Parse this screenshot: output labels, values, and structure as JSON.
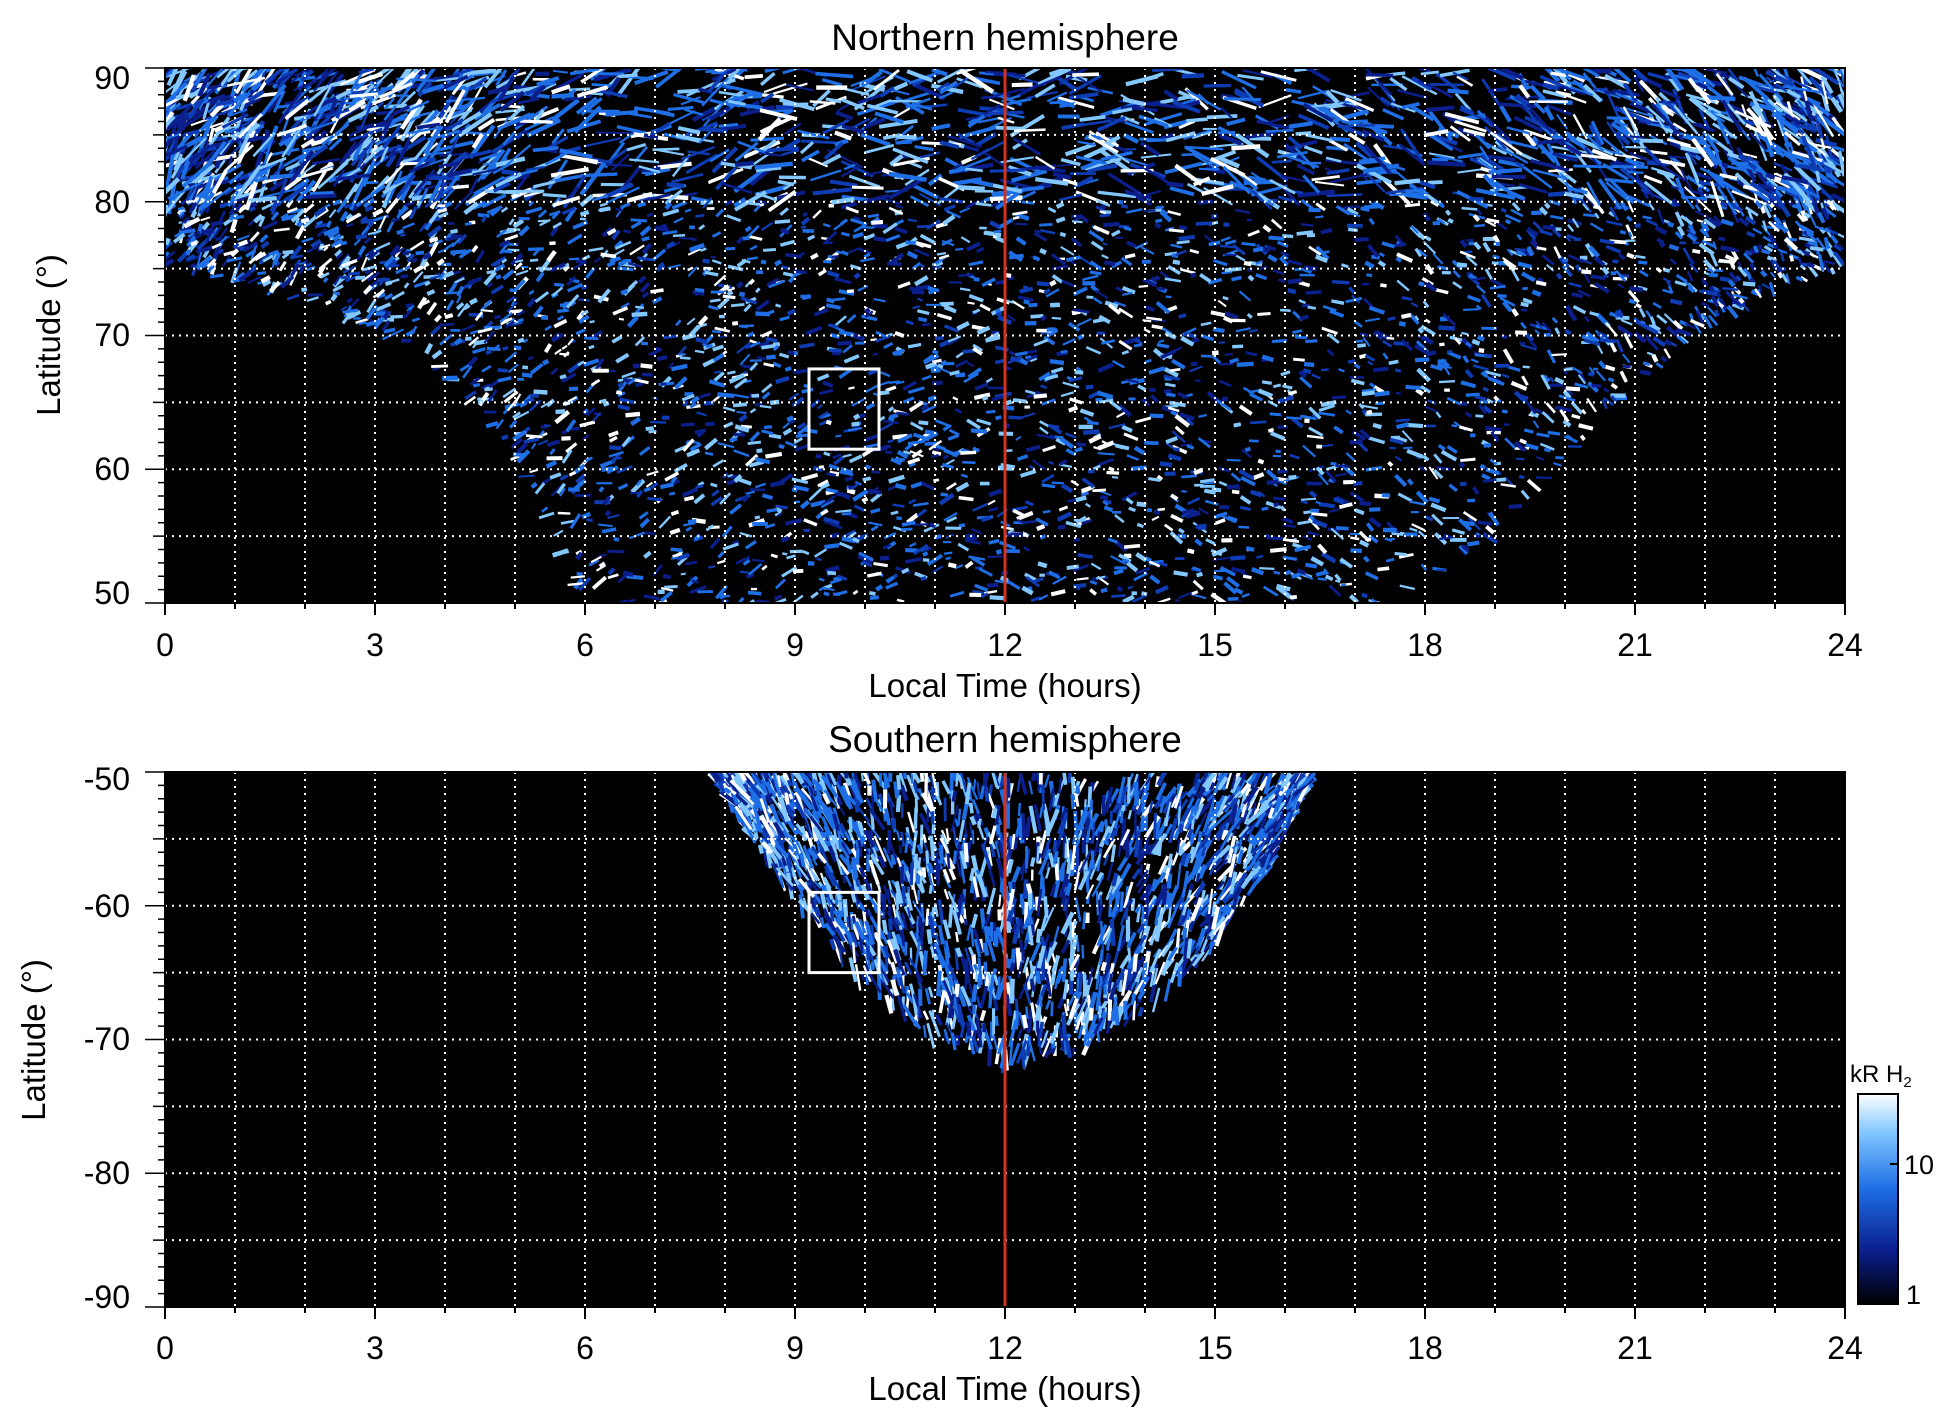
{
  "chart_data": [
    {
      "type": "heatmap",
      "title": "Northern hemisphere",
      "xlabel": "Local Time (hours)",
      "ylabel": "Latitude (°)",
      "xlim": [
        0,
        24
      ],
      "ylim": [
        50,
        90
      ],
      "x_ticks": [
        "0",
        "3",
        "6",
        "9",
        "12",
        "15",
        "18",
        "21",
        "24"
      ],
      "y_ticks": [
        "50",
        "60",
        "70",
        "80",
        "90"
      ],
      "grid": true,
      "noon_line_x": 12,
      "highlight_box": {
        "x": [
          9.2,
          10.2
        ],
        "y": [
          61.5,
          67.5
        ]
      },
      "coverage_floor": [
        [
          0,
          75
        ],
        [
          1,
          74
        ],
        [
          2,
          72.5
        ],
        [
          3,
          70.5
        ],
        [
          4,
          67
        ],
        [
          5,
          61
        ],
        [
          5.5,
          55
        ],
        [
          6,
          50
        ],
        [
          17.5,
          50
        ],
        [
          19,
          55
        ],
        [
          20,
          61
        ],
        [
          21,
          66
        ],
        [
          22,
          70.5
        ],
        [
          23,
          73.5
        ],
        [
          24,
          75
        ]
      ]
    },
    {
      "type": "heatmap",
      "title": "Southern hemisphere",
      "xlabel": "Local Time (hours)",
      "ylabel": "Latitude (°)",
      "xlim": [
        0,
        24
      ],
      "ylim": [
        -90,
        -50
      ],
      "x_ticks": [
        "0",
        "3",
        "6",
        "9",
        "12",
        "15",
        "18",
        "21",
        "24"
      ],
      "y_ticks": [
        "-50",
        "-60",
        "-70",
        "-80",
        "-90"
      ],
      "grid": true,
      "noon_line_x": 12,
      "highlight_box": {
        "x": [
          9.2,
          10.2
        ],
        "y": [
          -65,
          -59
        ]
      },
      "coverage_floor": [
        [
          7.8,
          -50
        ],
        [
          8.5,
          -56
        ],
        [
          9.2,
          -61
        ],
        [
          10,
          -66
        ],
        [
          11,
          -70
        ],
        [
          12,
          -72
        ],
        [
          13,
          -71
        ],
        [
          14,
          -68
        ],
        [
          15,
          -63
        ],
        [
          15.8,
          -57
        ],
        [
          16.4,
          -50
        ]
      ]
    }
  ],
  "colorbar": {
    "label": "kR H",
    "label_subscript": "2",
    "ticks": [
      "1",
      "10"
    ],
    "scale": "log",
    "colors": [
      "#000000",
      "#0a1e8c",
      "#1e6ee6",
      "#82c8ff",
      "#ffffff"
    ]
  },
  "noon_line_color": "#d2321e"
}
